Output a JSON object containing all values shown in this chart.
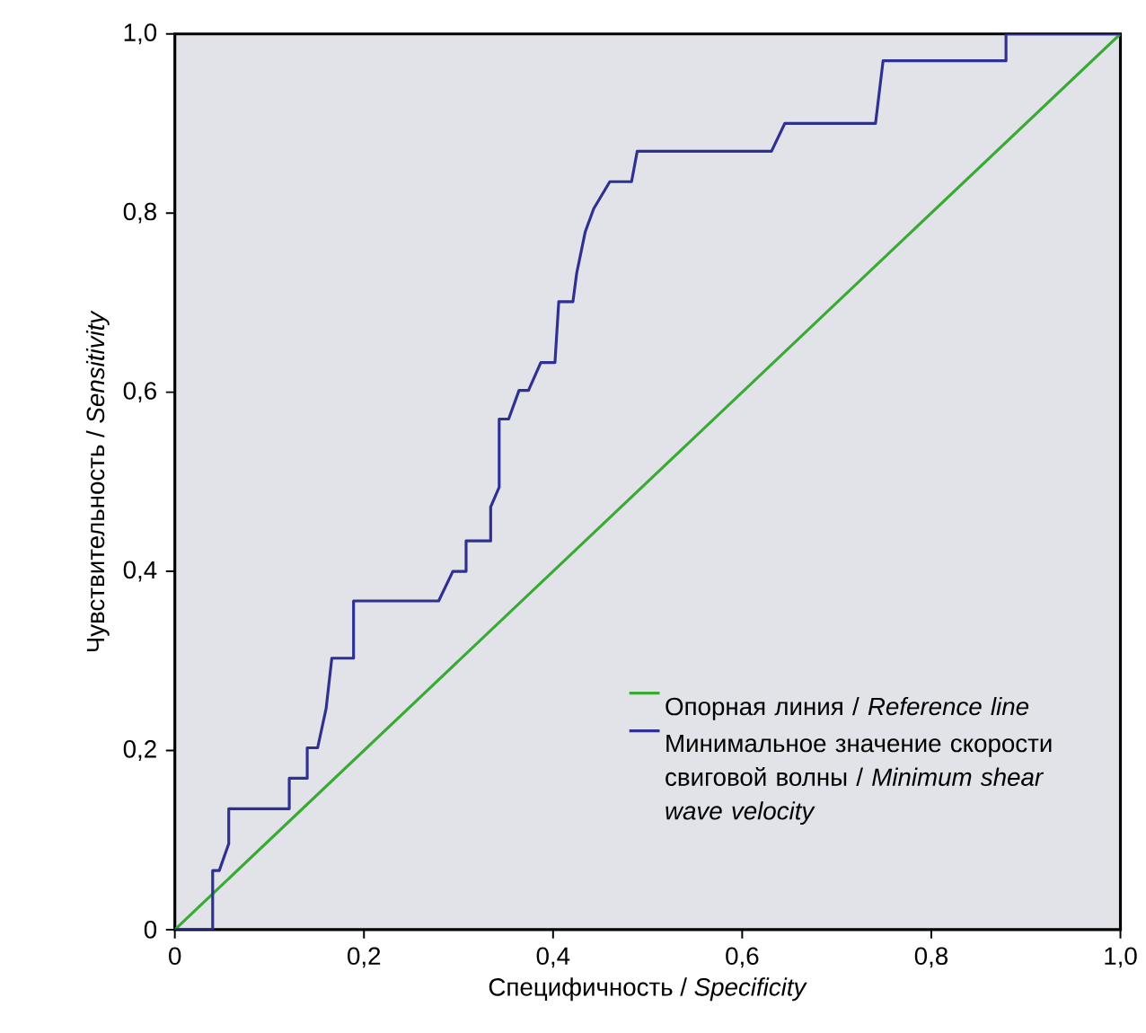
{
  "chart_data": {
    "type": "line",
    "xlabel": "Специфичность / *Specificity*",
    "ylabel": "Чувствительность / *Sensitivity*",
    "xlim": [
      0,
      1
    ],
    "ylim": [
      0,
      1
    ],
    "xticks": [
      0,
      {
        "value": 0.2,
        "label": "0,2"
      },
      {
        "value": 0.4,
        "label": "0,4"
      },
      {
        "value": 0.6,
        "label": "0,6"
      },
      {
        "value": 0.8,
        "label": "0,8"
      },
      {
        "value": 1,
        "label": "1,0"
      }
    ],
    "yticks": [
      0,
      {
        "value": 0.2,
        "label": "0,2"
      },
      {
        "value": 0.4,
        "label": "0,4"
      },
      {
        "value": 0.6,
        "label": "0,6"
      },
      {
        "value": 0.8,
        "label": "0,8"
      },
      {
        "value": 1,
        "label": "1,0"
      }
    ],
    "grid": false,
    "legend": "bottom right",
    "marker": "none",
    "line_style": "solid",
    "series": [
      {
        "name": "Опорная линия / *Reference line*",
        "color": "#3aaa35",
        "x": [
          0,
          1
        ],
        "values": [
          0,
          1
        ]
      },
      {
        "name": "Минимальное значение скорости свиговой волны / *Minimum shear wave velocity*",
        "color": "#2e3192",
        "x": [
          0,
          0.04,
          0.04,
          0.047,
          0.057,
          0.057,
          0.121,
          0.121,
          0.14,
          0.14,
          0.151,
          0.16,
          0.166,
          0.189,
          0.189,
          0.279,
          0.294,
          0.308,
          0.308,
          0.334,
          0.334,
          0.343,
          0.343,
          0.353,
          0.364,
          0.374,
          0.387,
          0.402,
          0.406,
          0.421,
          0.425,
          0.434,
          0.443,
          0.46,
          0.483,
          0.489,
          0.631,
          0.645,
          0.741,
          0.749,
          0.879,
          0.879,
          1
        ],
        "values": [
          0,
          0,
          0.066,
          0.066,
          0.096,
          0.135,
          0.135,
          0.169,
          0.169,
          0.203,
          0.203,
          0.247,
          0.303,
          0.303,
          0.367,
          0.367,
          0.4,
          0.4,
          0.434,
          0.434,
          0.472,
          0.494,
          0.57,
          0.57,
          0.602,
          0.602,
          0.633,
          0.633,
          0.701,
          0.701,
          0.733,
          0.779,
          0.805,
          0.835,
          0.835,
          0.869,
          0.869,
          0.9,
          0.9,
          0.97,
          0.97,
          1,
          1
        ]
      }
    ]
  }
}
